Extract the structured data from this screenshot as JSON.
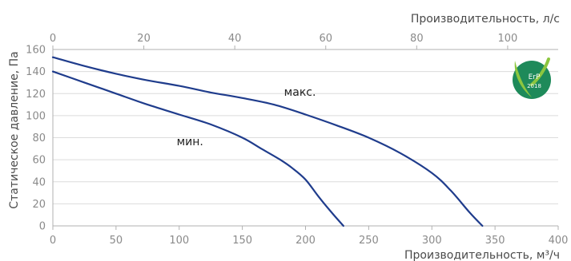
{
  "chart_data": {
    "type": "line",
    "xlabel": "Производительность, м³/ч",
    "x2label": "Производительность, л/с",
    "ylabel": "Статическое давление, Па",
    "xlim": [
      0,
      400
    ],
    "x2lim": [
      0,
      111.11
    ],
    "ylim": [
      0,
      160
    ],
    "x_ticks": [
      "0",
      "50",
      "100",
      "150",
      "200",
      "250",
      "300",
      "350",
      "400"
    ],
    "x2_ticks": [
      "0",
      "20",
      "40",
      "60",
      "80",
      "100"
    ],
    "y_ticks": [
      "0",
      "20",
      "40",
      "60",
      "80",
      "100",
      "120",
      "140",
      "160"
    ],
    "grid": "horizontal",
    "series": [
      {
        "name": "макс.",
        "color": "#1f3c8c",
        "points": [
          [
            0,
            153
          ],
          [
            25,
            145
          ],
          [
            50,
            138
          ],
          [
            75,
            132
          ],
          [
            100,
            127
          ],
          [
            125,
            121
          ],
          [
            150,
            116
          ],
          [
            175,
            110
          ],
          [
            200,
            101
          ],
          [
            225,
            91
          ],
          [
            250,
            80
          ],
          [
            275,
            66
          ],
          [
            300,
            48
          ],
          [
            315,
            32
          ],
          [
            330,
            12
          ],
          [
            340,
            0
          ]
        ]
      },
      {
        "name": "мин.",
        "color": "#1f3c8c",
        "points": [
          [
            0,
            140
          ],
          [
            25,
            130
          ],
          [
            50,
            120
          ],
          [
            75,
            110
          ],
          [
            100,
            101
          ],
          [
            125,
            92
          ],
          [
            150,
            80
          ],
          [
            165,
            70
          ],
          [
            180,
            60
          ],
          [
            190,
            52
          ],
          [
            200,
            42
          ],
          [
            210,
            27
          ],
          [
            220,
            13
          ],
          [
            230,
            0
          ]
        ]
      }
    ],
    "annotations": [
      {
        "text": "макс.",
        "x": 183,
        "y": 118
      },
      {
        "text": "мин.",
        "x": 98,
        "y": 73
      }
    ]
  },
  "logo": {
    "text_top": "ErP",
    "text_bottom": "2018",
    "color": "#1e8a5a"
  }
}
